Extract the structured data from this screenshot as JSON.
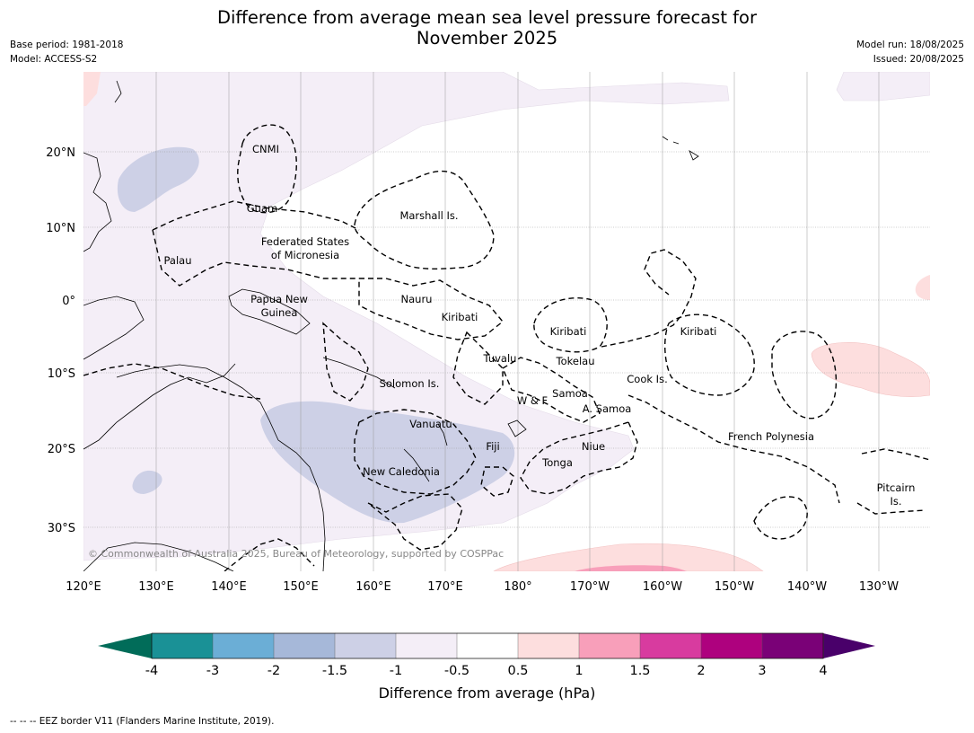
{
  "header": {
    "title_line1": "Difference from average mean sea level pressure forecast for",
    "title_line2": "November 2025",
    "base_period": "Base period: 1981-2018",
    "model": "Model: ACCESS-S2",
    "model_run": "Model run: 18/08/2025",
    "issued": "Issued: 20/08/2025"
  },
  "map": {
    "lon_ticks": [
      "120°E",
      "130°E",
      "140°E",
      "150°E",
      "160°E",
      "170°E",
      "180°",
      "170°W",
      "160°W",
      "150°W",
      "140°W",
      "130°W"
    ],
    "lat_ticks": [
      "20°N",
      "10°N",
      "0°",
      "10°S",
      "20°S",
      "30°S"
    ],
    "gridlines": true,
    "copyright": "© Commonwealth of Australia 2025, Bureau of Meteorology, supported by COSPPac",
    "places": [
      {
        "name": "CNMI"
      },
      {
        "name": "Guam"
      },
      {
        "name": "Marshall Is."
      },
      {
        "name": "Federated States"
      },
      {
        "name": "of Micronesia"
      },
      {
        "name": "Palau"
      },
      {
        "name": "Nauru"
      },
      {
        "name": "Papua New"
      },
      {
        "name": "Guinea"
      },
      {
        "name": "Kiribati"
      },
      {
        "name": "Kiribati"
      },
      {
        "name": "Kiribati"
      },
      {
        "name": "Tuvalu"
      },
      {
        "name": "Tokelau"
      },
      {
        "name": "Cook Is."
      },
      {
        "name": "Solomon Is."
      },
      {
        "name": "Samoa"
      },
      {
        "name": "W & F"
      },
      {
        "name": "A. Samoa"
      },
      {
        "name": "Vanuatu"
      },
      {
        "name": "Fiji"
      },
      {
        "name": "Niue"
      },
      {
        "name": "French Polynesia"
      },
      {
        "name": "Tonga"
      },
      {
        "name": "New Caledonia"
      },
      {
        "name": "Pitcairn"
      },
      {
        "name": "Is."
      }
    ]
  },
  "colorbar": {
    "label": "Difference from average (hPa)",
    "ticks": [
      "-4",
      "-3",
      "-2",
      "-1.5",
      "-1",
      "-0.5",
      "0.5",
      "1",
      "1.5",
      "2",
      "3",
      "4"
    ],
    "colors": [
      "#1a9196",
      "#6baed6",
      "#a6b8d9",
      "#cdd0e6",
      "#f4eef7",
      "#ffffff",
      "#fddede",
      "#f89fba",
      "#d83b9f",
      "#ae017e",
      "#7a0177"
    ],
    "under_color": "#016c59",
    "over_color": "#49006a"
  },
  "footer": {
    "legend": "--  --  -- EEZ border V11 (Flanders Marine Institute, 2019)."
  }
}
